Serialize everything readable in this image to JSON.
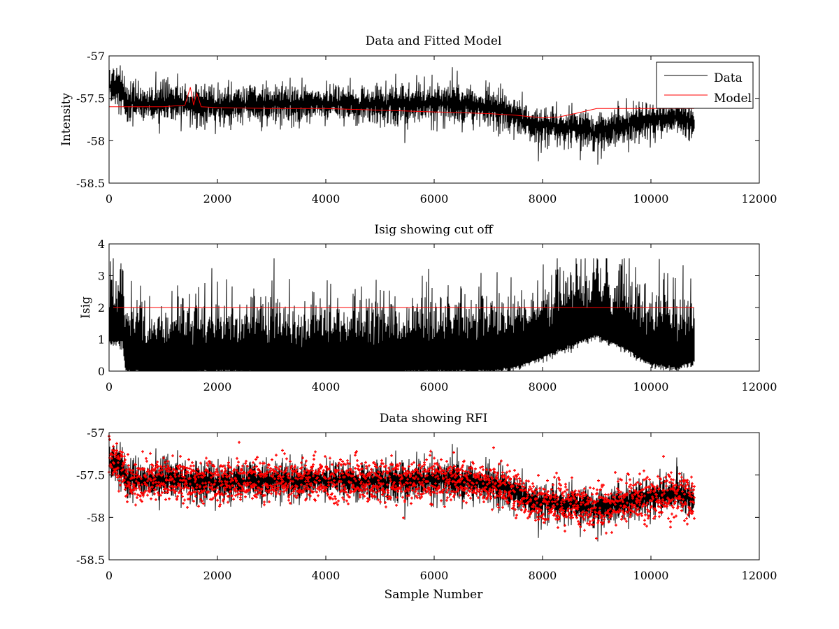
{
  "chart_data": [
    {
      "type": "line",
      "title": "Data and Fitted Model",
      "xlabel": "",
      "ylabel": "Intensity",
      "xlim": [
        0,
        12000
      ],
      "ylim": [
        -58.5,
        -57
      ],
      "xticks": [
        0,
        2000,
        4000,
        6000,
        8000,
        10000,
        12000
      ],
      "yticks": [
        -57,
        -57.5,
        -58,
        -58.5
      ],
      "grid": false,
      "legend": "top-right",
      "series": [
        {
          "name": "Data",
          "color": "#000000",
          "style": "noisy-line",
          "x": [
            0,
            250,
            300,
            1000,
            2000,
            3000,
            4000,
            5000,
            6000,
            7000,
            7200,
            7500,
            7800,
            8000,
            8500,
            9000,
            9500,
            10000,
            10500,
            10800
          ],
          "y": [
            -57.35,
            -57.4,
            -57.55,
            -57.55,
            -57.58,
            -57.57,
            -57.56,
            -57.58,
            -57.55,
            -57.6,
            -57.62,
            -57.72,
            -57.8,
            -57.82,
            -57.85,
            -57.9,
            -57.82,
            -57.75,
            -57.73,
            -57.8
          ],
          "noise_amplitude": 0.12,
          "n_samples": 10800
        },
        {
          "name": "Model",
          "color": "#ff0000",
          "style": "line",
          "x": [
            0,
            1000,
            1400,
            1500,
            1560,
            1620,
            1700,
            2000,
            3000,
            4000,
            5000,
            6000,
            7000,
            7500,
            8000,
            8300,
            8600,
            9000,
            9500,
            10000,
            10800
          ],
          "y": [
            -57.6,
            -57.6,
            -57.58,
            -57.37,
            -57.58,
            -57.44,
            -57.6,
            -57.61,
            -57.62,
            -57.62,
            -57.64,
            -57.66,
            -57.68,
            -57.7,
            -57.73,
            -57.72,
            -57.68,
            -57.62,
            -57.62,
            -57.62,
            -57.62
          ]
        }
      ]
    },
    {
      "type": "line",
      "title": "Isig showing cut off",
      "xlabel": "",
      "ylabel": "Isig",
      "xlim": [
        0,
        12000
      ],
      "ylim": [
        0,
        4
      ],
      "xticks": [
        0,
        2000,
        4000,
        6000,
        8000,
        10000,
        12000
      ],
      "yticks": [
        0,
        1,
        2,
        3,
        4
      ],
      "grid": false,
      "series": [
        {
          "color": "#000000",
          "style": "noisy-line",
          "x": [
            0,
            250,
            300,
            1000,
            2000,
            3000,
            4000,
            5000,
            6000,
            7000,
            7500,
            8000,
            8500,
            9000,
            9500,
            10000,
            10500,
            10800
          ],
          "y": [
            1.7,
            1.7,
            0.8,
            0.75,
            0.8,
            0.75,
            0.75,
            0.75,
            0.8,
            0.8,
            0.9,
            1.2,
            1.6,
            1.9,
            1.5,
            1.0,
            0.9,
            1.1
          ],
          "noise_amplitude": 1.0,
          "n_samples": 10800
        },
        {
          "color": "#ff0000",
          "style": "line",
          "x": [
            0,
            10800
          ],
          "y": [
            2,
            2
          ]
        }
      ]
    },
    {
      "type": "scatter",
      "title": "Data showing RFI",
      "xlabel": "Sample Number",
      "ylabel": "",
      "xlim": [
        0,
        12000
      ],
      "ylim": [
        -58.5,
        -57
      ],
      "xticks": [
        0,
        2000,
        4000,
        6000,
        8000,
        10000,
        12000
      ],
      "yticks": [
        -57,
        -57.5,
        -58,
        -58.5
      ],
      "grid": false,
      "series": [
        {
          "color": "#000000",
          "style": "noisy-line",
          "x": [
            0,
            250,
            300,
            1000,
            2000,
            3000,
            4000,
            5000,
            6000,
            7000,
            7200,
            7500,
            7800,
            8000,
            8500,
            9000,
            9500,
            10000,
            10500,
            10800
          ],
          "y": [
            -57.35,
            -57.4,
            -57.55,
            -57.55,
            -57.58,
            -57.57,
            -57.56,
            -57.58,
            -57.55,
            -57.6,
            -57.62,
            -57.72,
            -57.8,
            -57.82,
            -57.85,
            -57.9,
            -57.82,
            -57.75,
            -57.73,
            -57.8
          ],
          "noise_amplitude": 0.12,
          "n_samples": 10800
        },
        {
          "color": "#ff0000",
          "style": "markers",
          "marker": "+",
          "x": [
            0,
            250,
            300,
            1000,
            2000,
            3000,
            4000,
            5000,
            6000,
            7000,
            7200,
            7500,
            7800,
            8000,
            8500,
            9000,
            9500,
            10000,
            10500,
            10800
          ],
          "y": [
            -57.35,
            -57.4,
            -57.55,
            -57.55,
            -57.58,
            -57.57,
            -57.56,
            -57.58,
            -57.55,
            -57.6,
            -57.62,
            -57.72,
            -57.8,
            -57.82,
            -57.85,
            -57.9,
            -57.82,
            -57.75,
            -57.73,
            -57.8
          ],
          "noise_amplitude": 0.12,
          "n_samples": 10800
        }
      ]
    }
  ]
}
